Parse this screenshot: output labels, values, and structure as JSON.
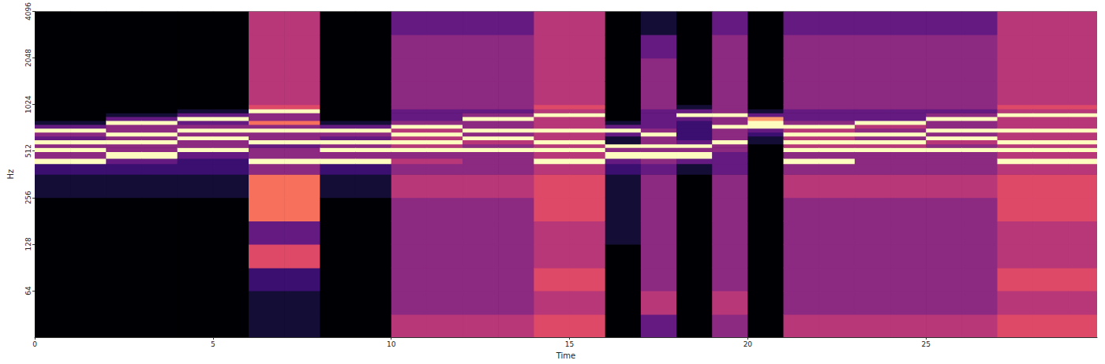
{
  "chart_data": {
    "type": "heatmap",
    "x_label": "Time",
    "y_label": "Hz",
    "xlim": [
      0,
      29.8
    ],
    "ylim": [
      32,
      4096
    ],
    "xticks": [
      0,
      5,
      10,
      15,
      20,
      25
    ],
    "yticks": [
      64,
      128,
      256,
      512,
      1024,
      2048,
      4096
    ],
    "log": "y",
    "grid": false,
    "value_range": [
      0,
      9
    ],
    "time_edges": [
      0,
      1,
      2,
      3,
      4,
      5,
      6,
      7,
      8,
      9,
      10,
      11,
      12,
      13,
      14,
      15,
      16,
      17,
      18,
      19,
      20,
      21,
      22,
      23,
      24,
      25,
      26,
      27,
      28,
      29,
      29.8
    ],
    "freq_edges": [
      32,
      45,
      64,
      90,
      128,
      181,
      256,
      362,
      425,
      460,
      508,
      540,
      570,
      605,
      640,
      678,
      720,
      762,
      808,
      855,
      905,
      960,
      1024,
      1448,
      2048,
      2896,
      4096
    ],
    "values": [
      [
        0,
        0,
        0,
        0,
        0,
        0,
        1,
        2,
        9,
        4,
        9,
        4,
        9,
        3,
        4,
        9,
        3,
        1,
        0,
        0,
        0,
        0,
        0,
        0,
        0,
        0
      ],
      [
        0,
        0,
        0,
        0,
        0,
        0,
        1,
        2,
        9,
        4,
        9,
        4,
        9,
        3,
        4,
        9,
        3,
        1,
        0,
        0,
        0,
        0,
        0,
        0,
        0,
        0
      ],
      [
        0,
        0,
        0,
        0,
        0,
        0,
        1,
        2,
        3,
        9,
        4,
        4,
        9,
        4,
        9,
        4,
        4,
        9,
        3,
        1,
        0,
        0,
        0,
        0,
        0,
        0
      ],
      [
        0,
        0,
        0,
        0,
        0,
        0,
        1,
        2,
        3,
        9,
        4,
        4,
        9,
        4,
        9,
        4,
        4,
        9,
        3,
        1,
        0,
        0,
        0,
        0,
        0,
        0
      ],
      [
        0,
        0,
        0,
        0,
        0,
        0,
        1,
        2,
        2,
        3,
        9,
        4,
        4,
        9,
        4,
        9,
        4,
        3,
        9,
        3,
        1,
        0,
        0,
        0,
        0,
        0
      ],
      [
        0,
        0,
        0,
        0,
        0,
        0,
        1,
        2,
        2,
        3,
        9,
        4,
        4,
        9,
        4,
        9,
        4,
        3,
        9,
        3,
        1,
        0,
        0,
        0,
        0,
        0
      ],
      [
        1,
        1,
        2,
        6,
        3,
        7,
        7,
        4,
        9,
        4,
        4,
        3,
        9,
        4,
        4,
        9,
        4,
        7,
        4,
        4,
        9,
        6,
        5,
        5,
        5,
        5
      ],
      [
        1,
        1,
        2,
        6,
        3,
        7,
        7,
        4,
        9,
        4,
        4,
        3,
        9,
        4,
        4,
        9,
        4,
        7,
        4,
        4,
        9,
        6,
        5,
        5,
        5,
        5
      ],
      [
        0,
        0,
        0,
        0,
        0,
        0,
        1,
        2,
        9,
        4,
        9,
        4,
        9,
        3,
        4,
        9,
        3,
        1,
        0,
        0,
        0,
        0,
        0,
        0,
        0,
        0
      ],
      [
        0,
        0,
        0,
        0,
        0,
        0,
        1,
        2,
        9,
        4,
        9,
        4,
        9,
        3,
        4,
        9,
        3,
        1,
        0,
        0,
        0,
        0,
        0,
        0,
        0,
        0
      ],
      [
        5,
        4,
        4,
        4,
        4,
        4,
        5,
        4,
        5,
        4,
        9,
        5,
        9,
        5,
        9,
        5,
        9,
        4,
        3,
        3,
        3,
        4,
        4,
        4,
        4,
        3
      ],
      [
        5,
        4,
        4,
        4,
        4,
        4,
        5,
        4,
        5,
        4,
        9,
        5,
        9,
        5,
        9,
        5,
        9,
        4,
        3,
        3,
        3,
        4,
        4,
        4,
        4,
        3
      ],
      [
        5,
        4,
        4,
        4,
        4,
        4,
        5,
        4,
        4,
        4,
        9,
        4,
        5,
        9,
        4,
        9,
        4,
        4,
        9,
        4,
        3,
        4,
        4,
        4,
        4,
        3
      ],
      [
        5,
        4,
        4,
        4,
        4,
        4,
        5,
        4,
        4,
        4,
        9,
        4,
        5,
        9,
        4,
        9,
        4,
        4,
        9,
        4,
        3,
        4,
        4,
        4,
        4,
        3
      ],
      [
        6,
        5,
        6,
        5,
        5,
        6,
        6,
        5,
        9,
        5,
        9,
        5,
        9,
        5,
        5,
        9,
        5,
        5,
        5,
        9,
        5,
        6,
        5,
        5,
        5,
        5
      ],
      [
        6,
        5,
        6,
        5,
        5,
        6,
        6,
        5,
        9,
        5,
        9,
        5,
        9,
        5,
        5,
        9,
        5,
        5,
        5,
        9,
        5,
        6,
        5,
        5,
        5,
        5
      ],
      [
        0,
        0,
        0,
        0,
        1,
        1,
        1,
        2,
        3,
        9,
        4,
        9,
        1,
        1,
        3,
        9,
        3,
        1,
        0,
        0,
        0,
        0,
        0,
        0,
        0,
        0
      ],
      [
        3,
        5,
        4,
        4,
        4,
        4,
        4,
        3,
        4,
        9,
        4,
        9,
        4,
        4,
        9,
        4,
        3,
        3,
        3,
        3,
        3,
        4,
        4,
        4,
        3,
        1
      ],
      [
        0,
        0,
        0,
        0,
        0,
        0,
        0,
        1,
        3,
        9,
        4,
        9,
        3,
        2,
        2,
        2,
        2,
        2,
        3,
        9,
        3,
        1,
        0,
        0,
        0,
        0
      ],
      [
        4,
        5,
        4,
        4,
        4,
        4,
        4,
        3,
        3,
        3,
        4,
        4,
        9,
        4,
        4,
        4,
        9,
        4,
        4,
        9,
        4,
        4,
        4,
        4,
        4,
        3
      ],
      [
        0,
        0,
        0,
        0,
        0,
        0,
        0,
        0,
        0,
        0,
        0,
        0,
        1,
        1,
        2,
        3,
        9,
        9,
        8,
        3,
        1,
        0,
        0,
        0,
        0,
        0
      ],
      [
        5,
        4,
        4,
        4,
        4,
        4,
        5,
        4,
        9,
        4,
        9,
        5,
        9,
        5,
        9,
        5,
        9,
        4,
        3,
        3,
        3,
        4,
        4,
        4,
        4,
        3
      ],
      [
        5,
        4,
        4,
        4,
        4,
        4,
        5,
        4,
        9,
        4,
        9,
        5,
        9,
        5,
        9,
        5,
        9,
        4,
        3,
        3,
        3,
        4,
        4,
        4,
        4,
        3
      ],
      [
        5,
        4,
        4,
        4,
        4,
        4,
        5,
        4,
        4,
        4,
        9,
        5,
        9,
        4,
        9,
        4,
        5,
        9,
        3,
        3,
        3,
        4,
        4,
        4,
        4,
        3
      ],
      [
        5,
        4,
        4,
        4,
        4,
        4,
        5,
        4,
        4,
        4,
        9,
        5,
        9,
        4,
        9,
        4,
        5,
        9,
        3,
        3,
        3,
        4,
        4,
        4,
        4,
        3
      ],
      [
        5,
        4,
        4,
        4,
        4,
        4,
        5,
        4,
        4,
        4,
        9,
        4,
        5,
        9,
        4,
        9,
        4,
        4,
        9,
        4,
        3,
        4,
        4,
        4,
        4,
        3
      ],
      [
        5,
        4,
        4,
        4,
        4,
        4,
        5,
        4,
        4,
        4,
        9,
        4,
        5,
        9,
        4,
        9,
        4,
        4,
        9,
        4,
        3,
        4,
        4,
        4,
        4,
        3
      ],
      [
        6,
        5,
        6,
        5,
        5,
        6,
        6,
        5,
        9,
        5,
        9,
        5,
        9,
        5,
        5,
        9,
        5,
        5,
        5,
        9,
        5,
        6,
        5,
        5,
        5,
        5
      ],
      [
        6,
        5,
        6,
        5,
        5,
        6,
        6,
        5,
        9,
        5,
        9,
        5,
        9,
        5,
        5,
        9,
        5,
        5,
        5,
        9,
        5,
        6,
        5,
        5,
        5,
        5
      ],
      [
        6,
        5,
        6,
        5,
        5,
        6,
        6,
        5,
        9,
        5,
        9,
        5,
        9,
        5,
        5,
        9,
        5,
        5,
        5,
        9,
        5,
        6,
        5,
        5,
        5,
        5
      ]
    ]
  }
}
